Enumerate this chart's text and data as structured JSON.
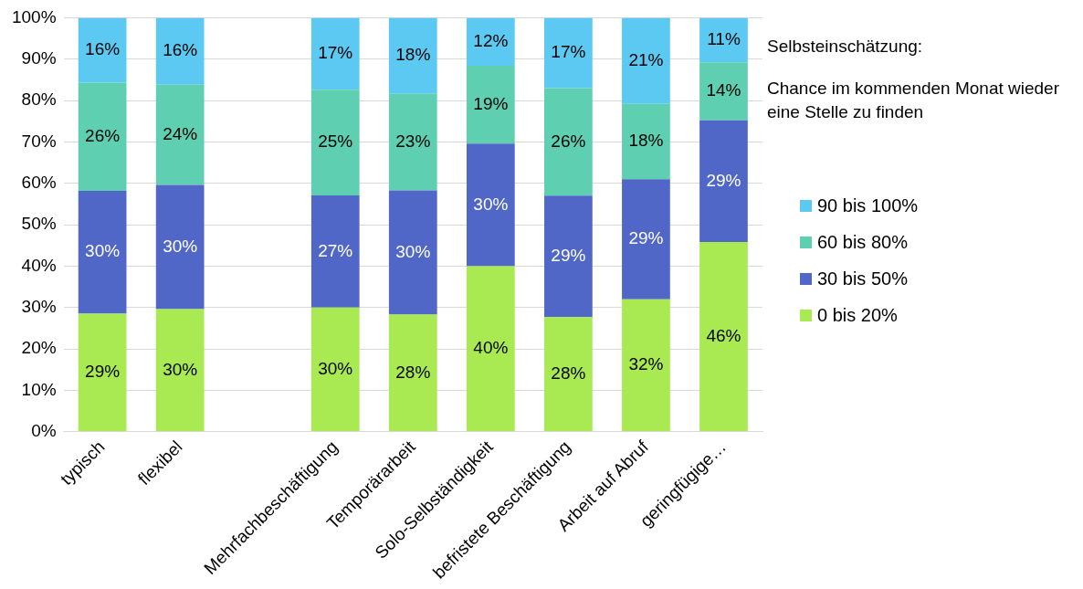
{
  "chart_data": {
    "type": "bar",
    "stacked": true,
    "categories": [
      "typisch",
      "flexibel",
      null,
      "Mehrfachbeschäftigung",
      "Temporärarbeit",
      "Solo-Selbständigkeit",
      "befristete Beschäftigung",
      "Arbeit auf Abruf",
      "geringfügige…"
    ],
    "series": [
      {
        "name": "0 bis 20%",
        "color": "#a9e952",
        "values": [
          28.5,
          29.6,
          null,
          30.0,
          28.3,
          40.0,
          27.7,
          32.0,
          45.8
        ],
        "value_labels": [
          "29%",
          "30%",
          null,
          "30%",
          "28%",
          "40%",
          "28%",
          "32%",
          "46%"
        ]
      },
      {
        "name": "30 bis 50%",
        "color": "#5067c8",
        "values": [
          29.7,
          30.0,
          null,
          27.1,
          30.0,
          29.6,
          29.3,
          29.0,
          29.4
        ],
        "value_labels": [
          "30%",
          "30%",
          null,
          "27%",
          "30%",
          "30%",
          "29%",
          "29%",
          "29%"
        ]
      },
      {
        "name": "60 bis 80%",
        "color": "#5ecfb1",
        "values": [
          26.1,
          24.2,
          null,
          25.5,
          23.3,
          18.8,
          26.0,
          18.2,
          14.0
        ],
        "value_labels": [
          "26%",
          "24%",
          null,
          "25%",
          "23%",
          "19%",
          "26%",
          "18%",
          "14%"
        ]
      },
      {
        "name": "90 bis 100%",
        "color": "#5bc9f1",
        "values": [
          15.7,
          16.2,
          null,
          17.4,
          18.4,
          11.6,
          17.0,
          20.8,
          10.8
        ],
        "value_labels": [
          "16%",
          "16%",
          null,
          "17%",
          "18%",
          "12%",
          "17%",
          "21%",
          "11%"
        ]
      }
    ],
    "ylim": [
      0,
      100
    ],
    "yticks": [
      {
        "value": 0,
        "label": "0%"
      },
      {
        "value": 10,
        "label": "10%"
      },
      {
        "value": 20,
        "label": "20%"
      },
      {
        "value": 30,
        "label": "30%"
      },
      {
        "value": 40,
        "label": "40%"
      },
      {
        "value": 50,
        "label": "50%"
      },
      {
        "value": 60,
        "label": "60%"
      },
      {
        "value": 70,
        "label": "70%"
      },
      {
        "value": 80,
        "label": "80%"
      },
      {
        "value": 90,
        "label": "90%"
      },
      {
        "value": 100,
        "label": "100%"
      }
    ],
    "grid": "y",
    "legend": "right",
    "legend_title": "Selbsteinschätzung:",
    "annotations": [
      "Chance im kommenden Monat wieder eine Stelle zu finden"
    ]
  }
}
